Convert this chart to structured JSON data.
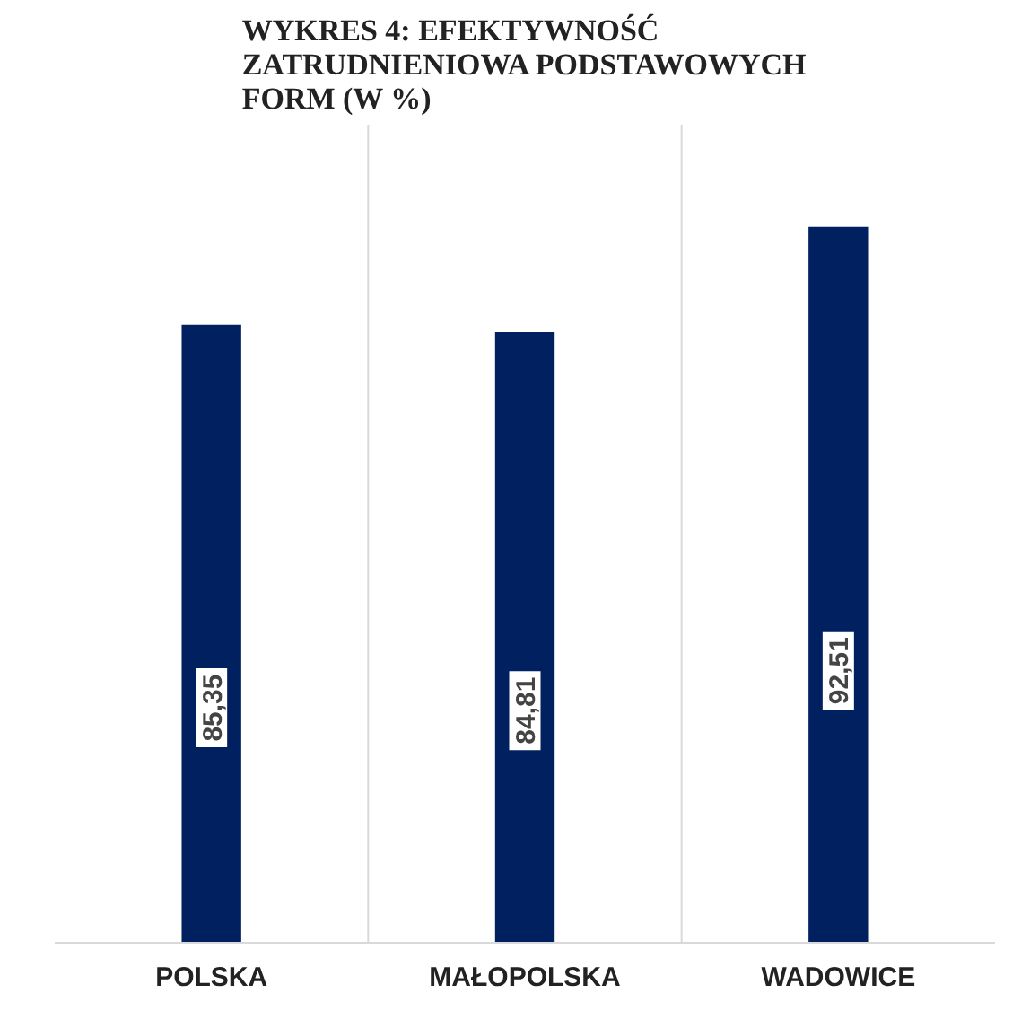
{
  "chart_data": {
    "type": "bar",
    "title": "WYKRES 4: EFEKTYWNOŚĆ ZATRUDNIENIOWA PODSTAWOWYCH FORM (W %)",
    "categories": [
      "POLSKA",
      "MAŁOPOLSKA",
      "WADOWICE"
    ],
    "values": [
      85.35,
      84.81,
      92.51
    ],
    "value_labels": [
      "85,35",
      "84,81",
      "92,51"
    ],
    "color": "#002060",
    "ylim": [
      40,
      100
    ],
    "grid": "x"
  }
}
